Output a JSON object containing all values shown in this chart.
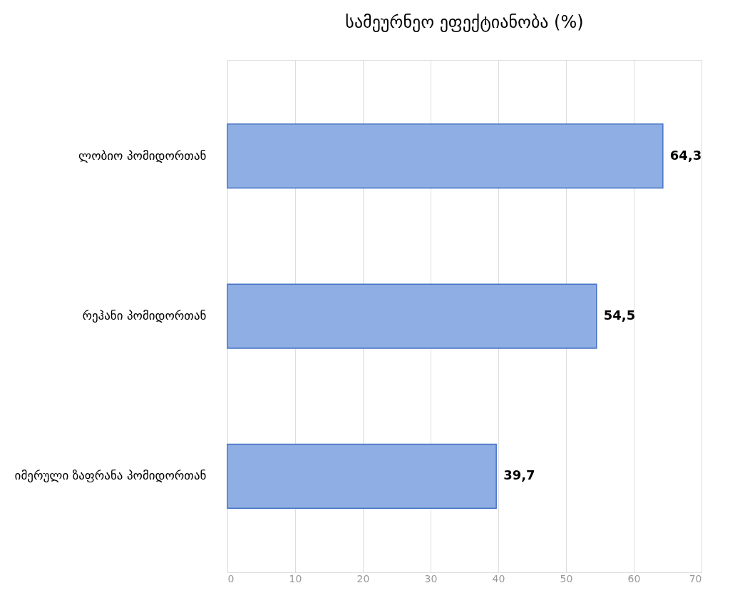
{
  "chart_data": {
    "type": "bar",
    "orientation": "horizontal",
    "title": "სამეურნეო ეფექტიანობა  (%)",
    "categories": [
      "ლობიო პომიდორთან",
      "რეჰანი პომიდორთან",
      "იმერული ზაფრანა პომიდორთან"
    ],
    "values": [
      64.3,
      54.5,
      39.7
    ],
    "value_labels": [
      "64,3",
      "54,5",
      "39,7"
    ],
    "color": "#8faee3",
    "xlim": [
      0,
      70
    ],
    "xticks": [
      0,
      10,
      20,
      30,
      40,
      50,
      60,
      70
    ],
    "grid": "x"
  }
}
